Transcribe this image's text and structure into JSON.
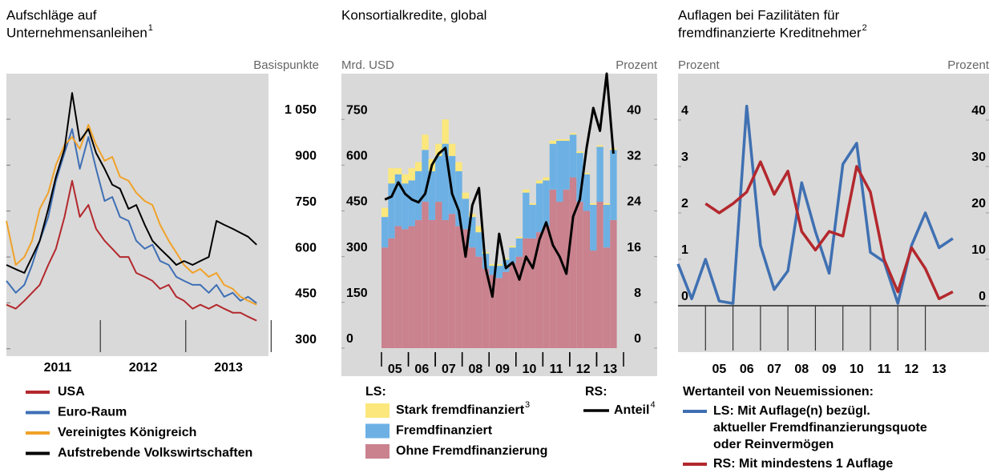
{
  "chart_data": [
    {
      "type": "line",
      "title": [
        "Aufschläge auf",
        "Unternehmensanleihen"
      ],
      "title_note": "1",
      "y_label": "Basispunkte",
      "x": [
        2010.9,
        2011.01,
        2011.11,
        2011.2,
        2011.29,
        2011.39,
        2011.48,
        2011.58,
        2011.67,
        2011.76,
        2011.86,
        2011.95,
        2012.05,
        2012.14,
        2012.23,
        2012.33,
        2012.42,
        2012.52,
        2012.61,
        2012.7,
        2012.8,
        2012.89,
        2012.98,
        2013.08,
        2013.17,
        2013.27,
        2013.36,
        2013.45,
        2013.55,
        2013.64,
        2013.73,
        2013.83
      ],
      "xlim": [
        2010.9,
        2013.95
      ],
      "xticks": [
        {
          "value": 2011.5,
          "label": "2011"
        },
        {
          "value": 2012.5,
          "label": "2012"
        },
        {
          "value": 2013.5,
          "label": "2013"
        }
      ],
      "ylim": [
        276,
        1199
      ],
      "yticks": [
        300,
        450,
        600,
        750,
        900,
        {
          "value": 1050,
          "label": "1 050"
        }
      ],
      "series": [
        {
          "name": "USA",
          "color": "#b3282d",
          "values": [
            444,
            431,
            457,
            483,
            509,
            574,
            627,
            731,
            849,
            731,
            770,
            692,
            653,
            627,
            600,
            600,
            548,
            535,
            522,
            496,
            509,
            470,
            457,
            431,
            444,
            431,
            444,
            431,
            418,
            418,
            405,
            392
          ]
        },
        {
          "name": "Euro-Raum",
          "color": "#3e6fb5",
          "values": [
            522,
            483,
            509,
            574,
            653,
            731,
            849,
            940,
            1018,
            888,
            992,
            888,
            783,
            796,
            731,
            718,
            653,
            627,
            640,
            587,
            574,
            535,
            522,
            509,
            509,
            483,
            509,
            470,
            483,
            457,
            470,
            449
          ]
        },
        {
          "name": "Vereinigtes Königreich",
          "color": "#f0a229",
          "values": [
            718,
            574,
            600,
            653,
            757,
            810,
            901,
            966,
            992,
            953,
            1032,
            966,
            914,
            927,
            862,
            849,
            810,
            783,
            770,
            705,
            653,
            614,
            574,
            548,
            561,
            535,
            548,
            509,
            496,
            470,
            457,
            444
          ]
        },
        {
          "name": "Aufstrebende Volkswirtschaften",
          "color": "#000000",
          "values": [
            574,
            560,
            548,
            600,
            653,
            757,
            862,
            953,
            1136,
            979,
            1018,
            940,
            888,
            836,
            823,
            757,
            770,
            705,
            653,
            627,
            600,
            574,
            587,
            574,
            587,
            600,
            718,
            705,
            692,
            679,
            666,
            640
          ]
        }
      ]
    },
    {
      "type": "stacked_bar",
      "title": [
        "Konsortialkredite, global"
      ],
      "y_label": "Mrd. USD",
      "y2_label": "Prozent",
      "legend_left_title": "LS:",
      "legend_right_title": "RS:",
      "categories": [
        "05",
        null,
        null,
        null,
        "06",
        null,
        null,
        null,
        "07",
        null,
        null,
        null,
        "08",
        null,
        null,
        null,
        "09",
        null,
        null,
        null,
        "10",
        null,
        null,
        null,
        "11",
        null,
        null,
        null,
        "12",
        null,
        null,
        null,
        "13",
        null,
        null
      ],
      "ylim": [
        0,
        900
      ],
      "yticks": [
        0,
        150,
        300,
        450,
        600,
        750
      ],
      "y2lim": [
        0,
        48
      ],
      "y2ticks": [
        0,
        8,
        16,
        24,
        32,
        40
      ],
      "series": [
        {
          "name": "Ohne Fremdfinanzierung",
          "color": "#c9828e",
          "values": [
            330,
            360,
            400,
            390,
            400,
            420,
            480,
            420,
            480,
            420,
            440,
            400,
            390,
            330,
            300,
            260,
            240,
            230,
            250,
            280,
            300,
            360,
            360,
            380,
            400,
            520,
            480,
            520,
            560,
            480,
            450,
            320,
            480,
            330,
            420
          ]
        },
        {
          "name": "Fremdfinanziert",
          "color": "#6db1e4",
          "values": [
            100,
            180,
            170,
            150,
            150,
            160,
            170,
            160,
            150,
            250,
            190,
            180,
            100,
            100,
            80,
            50,
            30,
            40,
            40,
            50,
            60,
            150,
            110,
            160,
            150,
            150,
            200,
            160,
            140,
            160,
            120,
            150,
            180,
            140,
            230
          ]
        },
        {
          "name": "Stark fremdfinanziert",
          "note": "3",
          "color": "#fbe77c",
          "values": [
            30,
            50,
            20,
            30,
            40,
            30,
            50,
            40,
            40,
            80,
            40,
            30,
            20,
            10,
            20,
            5,
            5,
            5,
            5,
            5,
            5,
            10,
            5,
            10,
            10,
            10,
            5,
            5,
            5,
            5,
            5,
            5,
            5,
            5,
            5
          ]
        },
        {
          "name": "Anteil",
          "note": "4",
          "color": "#000000",
          "axis": "y2",
          "values": [
            26,
            26.5,
            29,
            27,
            26,
            25.5,
            27,
            32,
            34,
            35,
            27,
            24,
            16,
            25,
            28,
            14,
            9,
            20,
            14,
            15,
            12,
            16,
            14,
            19,
            22,
            18,
            16,
            13,
            23,
            26,
            35,
            42,
            38,
            48,
            34
          ]
        }
      ]
    },
    {
      "type": "line",
      "title": [
        "Auflagen bei Fazilitäten für",
        "fremdfinanzierte Kreditnehmer"
      ],
      "title_note": "2",
      "y_label": "Prozent",
      "y2_label": "Prozent",
      "legend_title": "Wertanteil von Neuemissionen:",
      "xlim": [
        2004,
        2015.2
      ],
      "xticks": [
        {
          "value": 2005.5,
          "label": "05"
        },
        {
          "value": 2006.5,
          "label": "06"
        },
        {
          "value": 2007.5,
          "label": "07"
        },
        {
          "value": 2008.5,
          "label": "08"
        },
        {
          "value": 2009.5,
          "label": "09"
        },
        {
          "value": 2010.5,
          "label": "10"
        },
        {
          "value": 2011.5,
          "label": "11"
        },
        {
          "value": 2012.5,
          "label": "12"
        },
        {
          "value": 2013.5,
          "label": "13"
        }
      ],
      "ylim": [
        -1,
        5
      ],
      "yticks": [
        0,
        1,
        2,
        3,
        4
      ],
      "y2lim": [
        -10,
        50
      ],
      "y2ticks": [
        0,
        10,
        20,
        30,
        40
      ],
      "series": [
        {
          "name": [
            "LS: Mit Auflage(n) bezügl.",
            "aktueller Fremdfinanzierungsquote",
            "oder Reinvermögen"
          ],
          "color": "#3f70b2",
          "x": [
            2004,
            2004.5,
            2005,
            2005.5,
            2006,
            2006.5,
            2007,
            2007.5,
            2008,
            2008.5,
            2009,
            2009.5,
            2010,
            2010.5,
            2011,
            2011.5,
            2012,
            2012.5,
            2013,
            2013.5,
            2014
          ],
          "values": [
            0.9,
            0.15,
            1.0,
            0.1,
            0.05,
            4.3,
            1.3,
            0.35,
            0.75,
            2.65,
            1.6,
            0.7,
            3.05,
            3.5,
            1.15,
            0.95,
            0.05,
            1.3,
            2.0,
            1.25,
            1.45
          ]
        },
        {
          "name": [
            "RS: Mit mindestens 1 Auflage"
          ],
          "color": "#b3282d",
          "axis": "y2",
          "x": [
            2005,
            2005.5,
            2006,
            2006.5,
            2007,
            2007.5,
            2008,
            2008.5,
            2009,
            2009.5,
            2010,
            2010.5,
            2011,
            2011.5,
            2012,
            2012.5,
            2013,
            2013.5,
            2014
          ],
          "values": [
            22,
            20,
            22,
            24.5,
            31,
            24,
            29,
            16,
            12,
            16,
            15,
            30,
            24.5,
            10,
            3,
            12.5,
            8,
            1.5,
            3
          ]
        }
      ]
    }
  ]
}
